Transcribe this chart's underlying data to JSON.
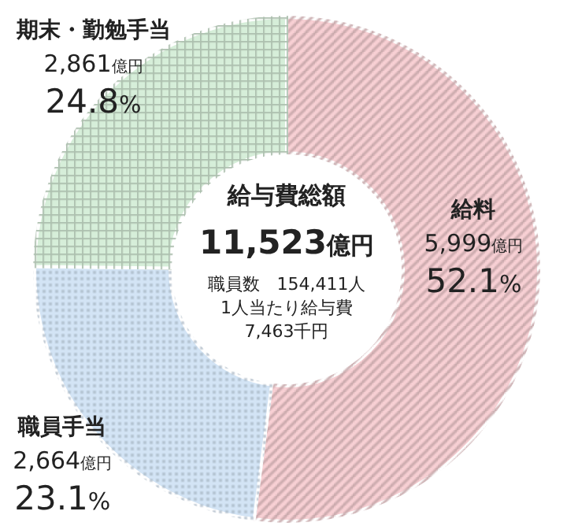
{
  "chart_data": {
    "type": "donut",
    "title": "給与費総額",
    "subtitle": "11,523億円",
    "categories": [
      "給料",
      "職員手当",
      "期末・勤勉手当"
    ],
    "values": [
      5999,
      2664,
      2861
    ],
    "colors": [
      "#f8d0d4",
      "#d3e4f5",
      "#d6eed9"
    ],
    "value_labels": [
      "5,999億円",
      "2,664億円",
      "2,861億円"
    ],
    "annotations": [
      {
        "text": "52.1%",
        "x": "給料"
      },
      {
        "text": "23.1%",
        "x": "職員手当"
      },
      {
        "text": "24.8%",
        "x": "期末・勤勉手当"
      },
      "職員数　154,411人",
      "1人当たり給与費",
      "7,463千円"
    ]
  }
}
